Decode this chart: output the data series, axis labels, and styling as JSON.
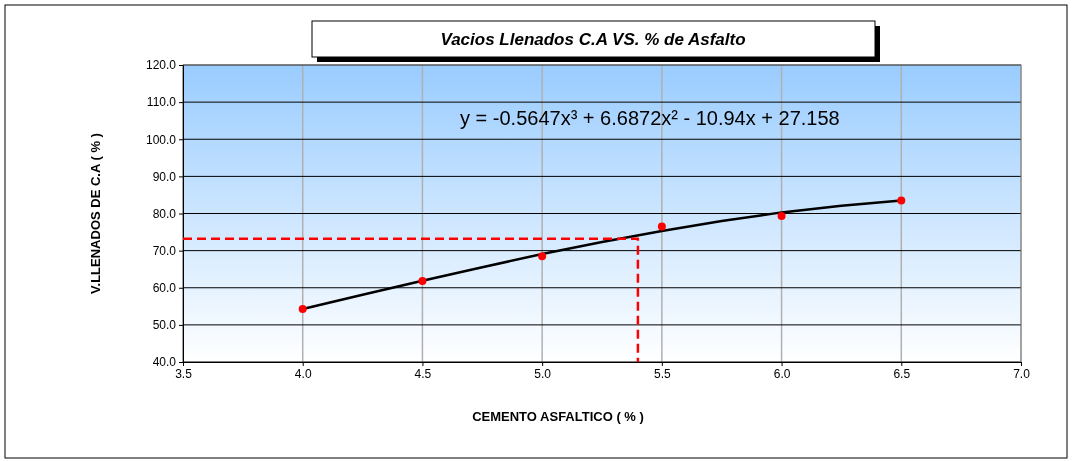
{
  "chart_data": {
    "type": "scatter",
    "title": "Vacios Llenados C.A VS. % de Asfalto",
    "xlabel": "CEMENTO ASFALTICO ( % )",
    "ylabel": "V.LLENADOS DE C.A ( % )",
    "annotations": [
      "y = -0.5647x³ + 6.6872x² - 10.94x + 27.158"
    ],
    "xlim": [
      3.5,
      7.0
    ],
    "ylim": [
      40,
      120
    ],
    "xticks": [
      3.5,
      {
        "value": 4,
        "label": "4.0"
      },
      4.5,
      {
        "value": 5,
        "label": "5.0"
      },
      5.5,
      {
        "value": 6,
        "label": "6.0"
      },
      6.5,
      {
        "value": 7,
        "label": "7.0"
      }
    ],
    "yticks": [
      {
        "value": 40,
        "label": "40.0"
      },
      {
        "value": 50,
        "label": "50.0"
      },
      {
        "value": 60,
        "label": "60.0"
      },
      {
        "value": 70,
        "label": "70.0"
      },
      {
        "value": 80,
        "label": "80.0"
      },
      {
        "value": 90,
        "label": "90.0"
      },
      {
        "value": 100,
        "label": "100.0"
      },
      {
        "value": 110,
        "label": "110.0"
      },
      {
        "value": 120,
        "label": "120.0"
      }
    ],
    "grid": true,
    "series": [
      {
        "type": "line",
        "color": "#000000",
        "line_style": "solid",
        "marker": "none",
        "x": [
          4,
          4.25,
          4.5,
          4.75,
          5,
          5.25,
          5.5,
          5.75,
          6,
          6.25,
          6.5
        ],
        "values": [
          54.3,
          58.1,
          61.9,
          65.5,
          69.1,
          72.3,
          75.3,
          78.0,
          80.3,
          82.1,
          83.5
        ]
      },
      {
        "type": "line",
        "color": "#ff0000",
        "line_style": "dashed",
        "marker": "none",
        "x": [
          3.5,
          5.4,
          5.4
        ],
        "values": [
          73.2,
          73.2,
          40
        ]
      },
      {
        "color": "#ff0000",
        "marker": "circle",
        "x": [
          4,
          4.5,
          5,
          5.5,
          6,
          6.5
        ],
        "values": [
          54.3,
          61.8,
          68.5,
          76.5,
          79.3,
          83.5
        ]
      }
    ]
  }
}
